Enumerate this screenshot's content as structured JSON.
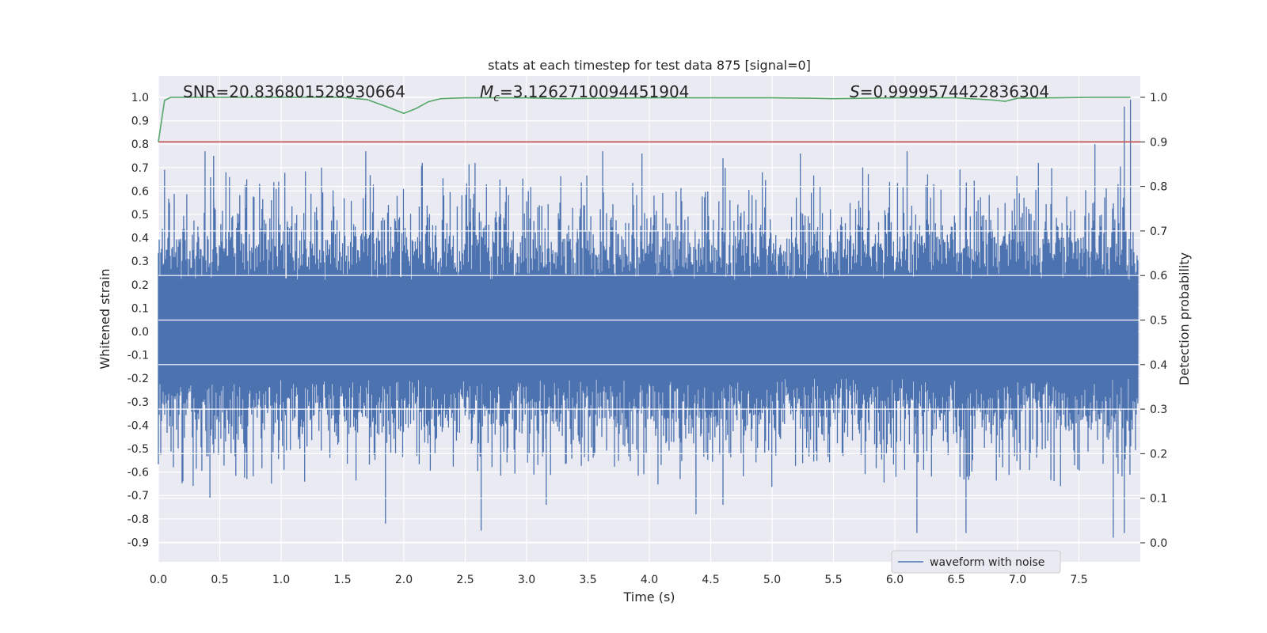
{
  "chart_data": {
    "type": "line",
    "title": "stats at each timestep for test data 875 [signal=0]",
    "xlabel": "Time (s)",
    "ylabel_left": "Whitened strain",
    "ylabel_right": "Detection probability",
    "xlim": [
      0.0,
      8.0
    ],
    "ylim_left": [
      -0.95,
      1.09
    ],
    "ylim_right": [
      0.0,
      1.0
    ],
    "x_ticks": [
      "0.0",
      "0.5",
      "1.0",
      "1.5",
      "2.0",
      "2.5",
      "3.0",
      "3.5",
      "4.0",
      "4.5",
      "5.0",
      "5.5",
      "6.0",
      "6.5",
      "7.0",
      "7.5"
    ],
    "y_ticks_left": [
      "1.0",
      "0.9",
      "0.8",
      "0.7",
      "0.6",
      "0.5",
      "0.4",
      "0.3",
      "0.2",
      "0.1",
      "0.0",
      "-0.1",
      "-0.2",
      "-0.3",
      "-0.4",
      "-0.5",
      "-0.6",
      "-0.7",
      "-0.8",
      "-0.9"
    ],
    "y_ticks_right": [
      "1.0",
      "0.9",
      "0.8",
      "0.7",
      "0.6",
      "0.5",
      "0.4",
      "0.3",
      "0.2",
      "0.1",
      "0.0"
    ],
    "annotations": {
      "snr": "SNR=20.836801528930664",
      "mc_symbol": "M",
      "mc_sub": "c",
      "mc_value": "=3.1262710094451904",
      "s_symbol": "S",
      "s_value": "=0.9999574422836304"
    },
    "legend": {
      "label": "waveform with noise",
      "placement": "lower right"
    },
    "series": [
      {
        "name": "waveform with noise",
        "axis": "left",
        "color": "#4c72b0",
        "note_visible": "dense noise, roughly within ±0.45 with spikes",
        "spikes": [
          {
            "x": 0.05,
            "y": 0.69
          },
          {
            "x": 0.38,
            "y": 0.77
          },
          {
            "x": 0.45,
            "y": 0.75
          },
          {
            "x": 0.55,
            "y": 0.68
          },
          {
            "x": 0.72,
            "y": 0.65
          },
          {
            "x": 0.98,
            "y": 0.64
          },
          {
            "x": 1.33,
            "y": 0.7
          },
          {
            "x": 1.69,
            "y": 0.77
          },
          {
            "x": 2.15,
            "y": 0.72
          },
          {
            "x": 2.58,
            "y": 0.72
          },
          {
            "x": 3.62,
            "y": 0.77
          },
          {
            "x": 3.94,
            "y": 0.76
          },
          {
            "x": 4.6,
            "y": 0.74
          },
          {
            "x": 5.23,
            "y": 0.76
          },
          {
            "x": 6.1,
            "y": 0.77
          },
          {
            "x": 7.17,
            "y": 0.72
          },
          {
            "x": 7.63,
            "y": 0.8
          },
          {
            "x": 7.87,
            "y": 0.96
          },
          {
            "x": 7.92,
            "y": 0.99
          },
          {
            "x": 0.2,
            "y": -0.64
          },
          {
            "x": 0.42,
            "y": -0.71
          },
          {
            "x": 1.85,
            "y": -0.82
          },
          {
            "x": 2.63,
            "y": -0.85
          },
          {
            "x": 3.16,
            "y": -0.74
          },
          {
            "x": 4.38,
            "y": -0.78
          },
          {
            "x": 4.6,
            "y": -0.74
          },
          {
            "x": 6.18,
            "y": -0.86
          },
          {
            "x": 6.58,
            "y": -0.86
          },
          {
            "x": 7.35,
            "y": -0.66
          },
          {
            "x": 7.78,
            "y": -0.88
          },
          {
            "x": 7.87,
            "y": -0.86
          }
        ]
      },
      {
        "name": "detection probability",
        "axis": "right",
        "color": "#55a868",
        "x": [
          0.0,
          0.05,
          0.1,
          0.5,
          1.0,
          1.5,
          1.7,
          1.85,
          2.0,
          2.1,
          2.2,
          2.3,
          2.5,
          3.0,
          3.3,
          3.6,
          4.0,
          4.5,
          5.0,
          5.3,
          5.5,
          6.0,
          6.5,
          6.8,
          6.9,
          7.0,
          7.3,
          7.6,
          7.92
        ],
        "y": [
          0.9,
          0.993,
          1.0,
          1.0,
          1.0,
          1.0,
          0.995,
          0.98,
          0.964,
          0.975,
          0.99,
          0.997,
          0.999,
          0.999,
          0.997,
          0.998,
          0.999,
          0.999,
          0.999,
          0.998,
          0.997,
          0.999,
          0.999,
          0.994,
          0.991,
          0.998,
          0.999,
          1.0,
          1.0
        ]
      },
      {
        "name": "threshold",
        "axis": "right",
        "color": "#c44e52",
        "x": [
          0.0,
          8.0
        ],
        "y": [
          0.9,
          0.9
        ]
      }
    ],
    "grid": true
  },
  "colors": {
    "plot_background": "#eaeaf2",
    "grid": "#ffffff",
    "waveform": "#4c72b0",
    "probability": "#55a868",
    "threshold": "#c44e52"
  }
}
